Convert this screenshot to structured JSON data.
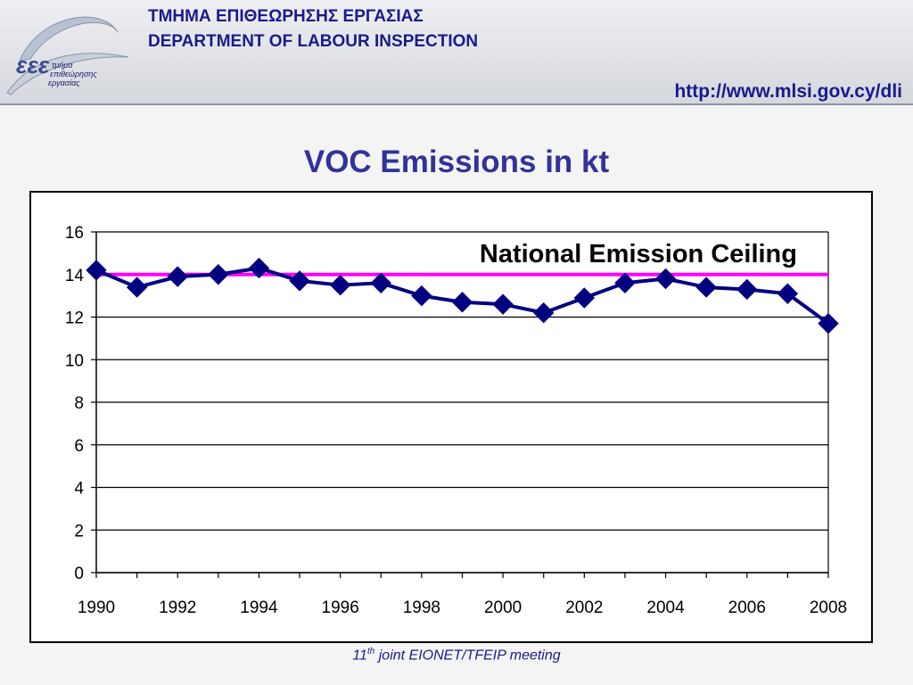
{
  "header": {
    "greek_title": "ΤΜΗΜΑ ΕΠΙΘΕΩΡΗΣΗΣ ΕΡΓΑΣΙΑΣ",
    "english_title": "DEPARTMENT OF LABOUR INSPECTION",
    "url": "http://www.mlsi.gov.cy/dli",
    "logo_text": [
      "τμήμα",
      "επιθεώρησης",
      "εργασίας"
    ]
  },
  "slide_title": "VOC Emissions in kt",
  "footer": {
    "num": "11",
    "sup": "th",
    "rest": " joint EIONET/TFEIP meeting"
  },
  "colors": {
    "series": "#000080",
    "ceiling": "#ff00ff",
    "title": "#32329a"
  },
  "chart_data": {
    "type": "line",
    "title": "VOC Emissions in kt",
    "xlabel": "",
    "ylabel": "",
    "xlim": [
      1990,
      2008
    ],
    "ylim": [
      0,
      16
    ],
    "x_ticks": [
      "1990",
      "1992",
      "1994",
      "1996",
      "1998",
      "2000",
      "2002",
      "2004",
      "2006",
      "2008"
    ],
    "y_ticks": [
      "0",
      "2",
      "4",
      "6",
      "8",
      "10",
      "12",
      "14",
      "16"
    ],
    "grid": true,
    "series": [
      {
        "x": [
          1990,
          1991,
          1992,
          1993,
          1994,
          1995,
          1996,
          1997,
          1998,
          1999,
          2000,
          2001,
          2002,
          2003,
          2004,
          2005,
          2006,
          2007,
          2008
        ],
        "values": [
          14.2,
          13.4,
          13.9,
          14.0,
          14.3,
          13.7,
          13.5,
          13.6,
          13.0,
          12.7,
          12.6,
          12.2,
          12.9,
          13.6,
          13.8,
          13.4,
          13.3,
          13.1,
          11.7
        ]
      }
    ],
    "ceiling": {
      "label": "National Emission Ceiling",
      "value": 14.0
    }
  }
}
